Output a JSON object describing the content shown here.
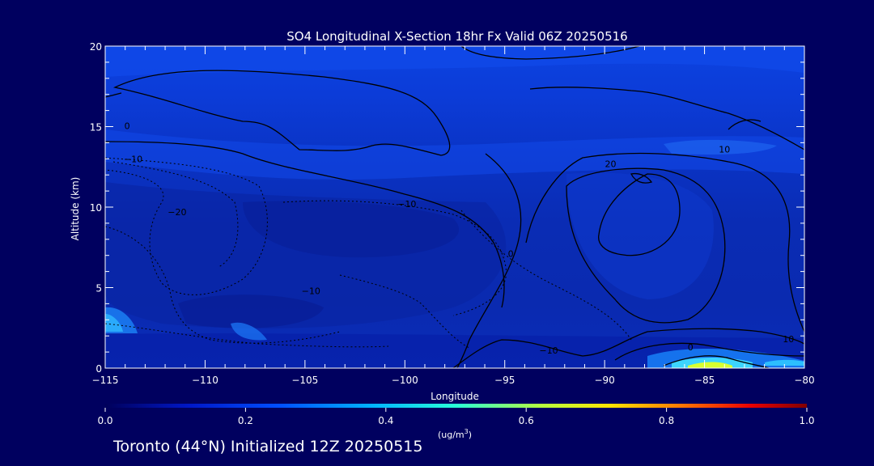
{
  "chart_data": {
    "type": "heatmap",
    "title": "SO4 Longitudinal X-Section 18hr  Fx Valid 06Z 20250516",
    "xlabel": "Longitude",
    "ylabel": "Altitude (km)",
    "xlim": [
      -115,
      -80
    ],
    "ylim": [
      0,
      20
    ],
    "xticks": [
      -115,
      -110,
      -105,
      -100,
      -95,
      -90,
      -85,
      -80
    ],
    "xtick_labels": [
      "−115",
      "−110",
      "−105",
      "−100",
      "−95",
      "−90",
      "−85",
      "−80"
    ],
    "yticks": [
      0,
      5,
      10,
      15,
      20
    ],
    "ytick_labels": [
      "0",
      "5",
      "10",
      "15",
      "20"
    ],
    "colorbar": {
      "min": 0.0,
      "max": 1.0,
      "ticks": [
        "0.0",
        "0.2",
        "0.4",
        "0.6",
        "0.8",
        "1.0"
      ],
      "units_prefix": "(ug/m",
      "units_exp": "3",
      "units_suffix": ")"
    },
    "contour_labels": [
      {
        "text": "0",
        "x": -113.9,
        "y": 14.85
      },
      {
        "text": "−10",
        "x": -113.6,
        "y": 12.8
      },
      {
        "text": "−20",
        "x": -111.4,
        "y": 9.5
      },
      {
        "text": "−10",
        "x": -104.7,
        "y": 4.6
      },
      {
        "text": "−10",
        "x": -99.9,
        "y": 10.0
      },
      {
        "text": "0",
        "x": -94.7,
        "y": 6.9
      },
      {
        "text": "−10",
        "x": -92.8,
        "y": 0.9
      },
      {
        "text": "20",
        "x": -89.7,
        "y": 12.5
      },
      {
        "text": "10",
        "x": -84.0,
        "y": 13.4
      },
      {
        "text": "0",
        "x": -85.7,
        "y": 1.1
      },
      {
        "text": "10",
        "x": -80.8,
        "y": 1.6
      }
    ]
  },
  "footer": "Toronto (44°N) Initialized 12Z 20250515"
}
